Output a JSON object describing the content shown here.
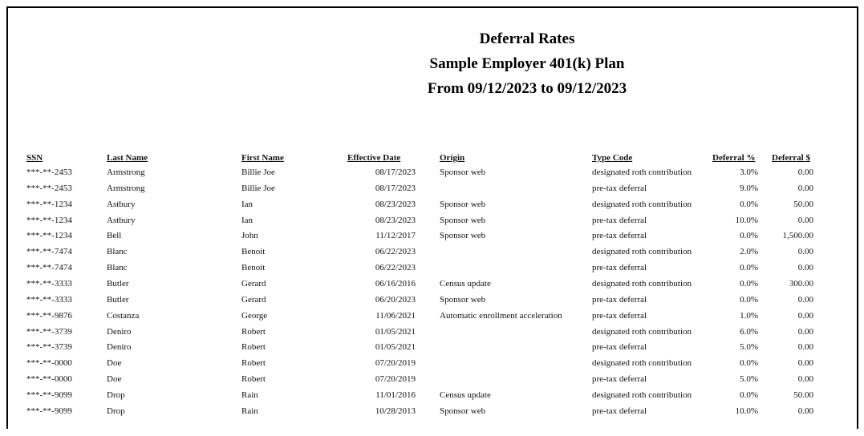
{
  "header": {
    "title": "Deferral Rates",
    "subtitle": "Sample Employer 401(k) Plan",
    "date_range": "From 09/12/2023 to 09/12/2023"
  },
  "table": {
    "columns": [
      "SSN",
      "Last Name",
      "First Name",
      "Effective Date",
      "Origin",
      "Type Code",
      "Deferral %",
      "Deferral $"
    ],
    "rows": [
      [
        "***-**-2453",
        "Armstrong",
        "Billie Joe",
        "08/17/2023",
        "Sponsor web",
        "designated roth contribution",
        "3.0%",
        "0.00"
      ],
      [
        "***-**-2453",
        "Armstrong",
        "Billie Joe",
        "08/17/2023",
        null,
        "pre-tax deferral",
        "9.0%",
        "0.00"
      ],
      [
        "***-**-1234",
        "Astbury",
        "Ian",
        "08/23/2023",
        "Sponsor web",
        "designated roth contribution",
        "0.0%",
        "50.00"
      ],
      [
        "***-**-1234",
        "Astbury",
        "Ian",
        "08/23/2023",
        "Sponsor web",
        "pre-tax deferral",
        "10.0%",
        "0.00"
      ],
      [
        "***-**-1234",
        "Bell",
        "John",
        "11/12/2017",
        "Sponsor web",
        "pre-tax deferral",
        "0.0%",
        "1,500.00"
      ],
      [
        "***-**-7474",
        "Blanc",
        "Benoit",
        "06/22/2023",
        null,
        "designated roth contribution",
        "2.0%",
        "0.00"
      ],
      [
        "***-**-7474",
        "Blanc",
        "Benoit",
        "06/22/2023",
        null,
        "pre-tax deferral",
        "0.0%",
        "0.00"
      ],
      [
        "***-**-3333",
        "Butler",
        "Gerard",
        "06/16/2016",
        "Census update",
        "designated roth contribution",
        "0.0%",
        "300.00"
      ],
      [
        "***-**-3333",
        "Butler",
        "Gerard",
        "06/20/2023",
        "Sponsor web",
        "pre-tax deferral",
        "0.0%",
        "0.00"
      ],
      [
        "***-**-9876",
        "Costanza",
        "George",
        "11/06/2021",
        "Automatic enrollment acceleration",
        "pre-tax deferral",
        "1.0%",
        "0.00"
      ],
      [
        "***-**-3739",
        "Deniro",
        "Robert",
        "01/05/2021",
        null,
        "designated roth contribution",
        "6.0%",
        "0.00"
      ],
      [
        "***-**-3739",
        "Deniro",
        "Robert",
        "01/05/2021",
        null,
        "pre-tax deferral",
        "5.0%",
        "0.00"
      ],
      [
        "***-**-0000",
        "Doe",
        "Robert",
        "07/20/2019",
        null,
        "designated roth contribution",
        "0.0%",
        "0.00"
      ],
      [
        "***-**-0000",
        "Doe",
        "Robert",
        "07/20/2019",
        null,
        "pre-tax deferral",
        "5.0%",
        "0.00"
      ],
      [
        "***-**-9099",
        "Drop",
        "Rain",
        "11/01/2016",
        "Census update",
        "designated roth contribution",
        "0.0%",
        "50.00"
      ],
      [
        "***-**-9099",
        "Drop",
        "Rain",
        "10/28/2013",
        "Sponsor web",
        "pre-tax deferral",
        "10.0%",
        "0.00"
      ]
    ]
  }
}
